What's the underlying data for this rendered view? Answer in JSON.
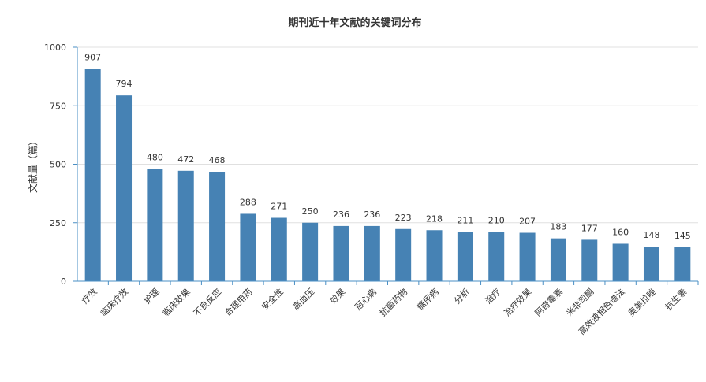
{
  "chart_data": {
    "type": "bar",
    "title": "期刊近十年文献的关键词分布",
    "ylabel": "文献量（篇）",
    "xlabel": "",
    "ylim": [
      0,
      1000
    ],
    "yticks": [
      0,
      250,
      500,
      750,
      1000
    ],
    "grid": true,
    "categories": [
      "疗效",
      "临床疗效",
      "护理",
      "临床效果",
      "不良反应",
      "合理用药",
      "安全性",
      "高血压",
      "效果",
      "冠心病",
      "抗菌药物",
      "糖尿病",
      "分析",
      "治疗",
      "治疗效果",
      "阿奇霉素",
      "米非司酮",
      "高效液相色谱法",
      "奥美拉唑",
      "抗生素"
    ],
    "values": [
      907,
      794,
      480,
      472,
      468,
      288,
      271,
      250,
      236,
      236,
      223,
      218,
      211,
      210,
      207,
      183,
      177,
      160,
      148,
      145
    ],
    "colors": {
      "bar": "#4682b4",
      "axis": "#4a8fc4",
      "grid": "#e0e0e0"
    }
  }
}
